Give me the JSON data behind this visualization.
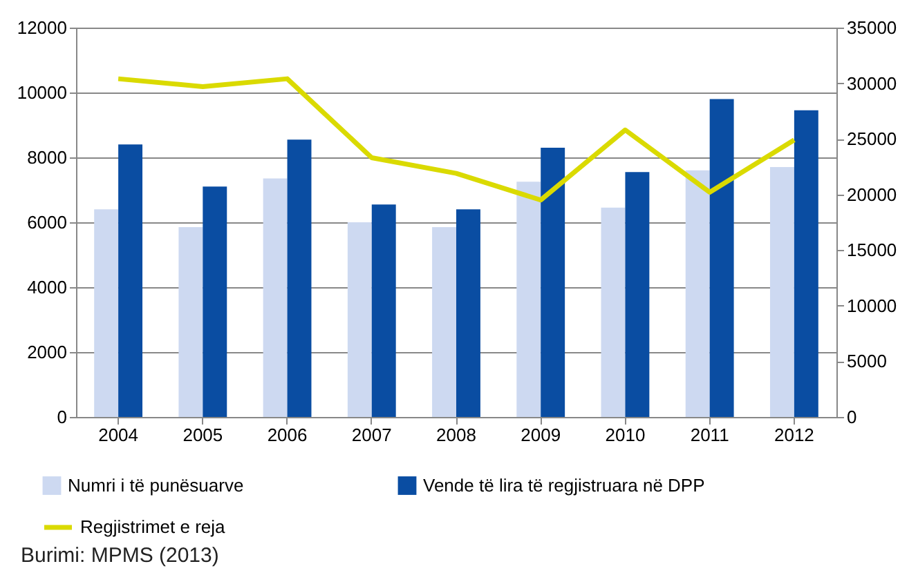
{
  "chart_data": {
    "type": "bar",
    "categories": [
      "2004",
      "2005",
      "2006",
      "2007",
      "2008",
      "2009",
      "2010",
      "2011",
      "2012"
    ],
    "series": [
      {
        "name": "Numri i të punësuarve",
        "color": "#cdd9f1",
        "values": [
          6400,
          5850,
          7350,
          6000,
          5850,
          7250,
          6450,
          7600,
          7700
        ]
      },
      {
        "name": "Vende të lira të regjistruara në DPP",
        "color": "#0a4da2",
        "values": [
          8400,
          7100,
          8550,
          6550,
          6400,
          8300,
          7550,
          9800,
          9450
        ]
      },
      {
        "name": "Regjistrimet e reja",
        "color": "#dada00",
        "type": "line",
        "axis": "y2",
        "values": [
          30400,
          29700,
          30400,
          23300,
          21900,
          19500,
          25800,
          20200,
          24900
        ]
      }
    ],
    "ylim": [
      0,
      12000
    ],
    "yticks": [
      0,
      2000,
      4000,
      6000,
      8000,
      10000,
      12000
    ],
    "y2lim": [
      0,
      35000
    ],
    "y2ticks": [
      0,
      5000,
      10000,
      15000,
      20000,
      25000,
      30000,
      35000
    ],
    "grid": "y",
    "legend": "bottom",
    "marker": "none",
    "line_style": "solid",
    "annotations": [
      "Burimi: MPMS (2013)"
    ]
  }
}
